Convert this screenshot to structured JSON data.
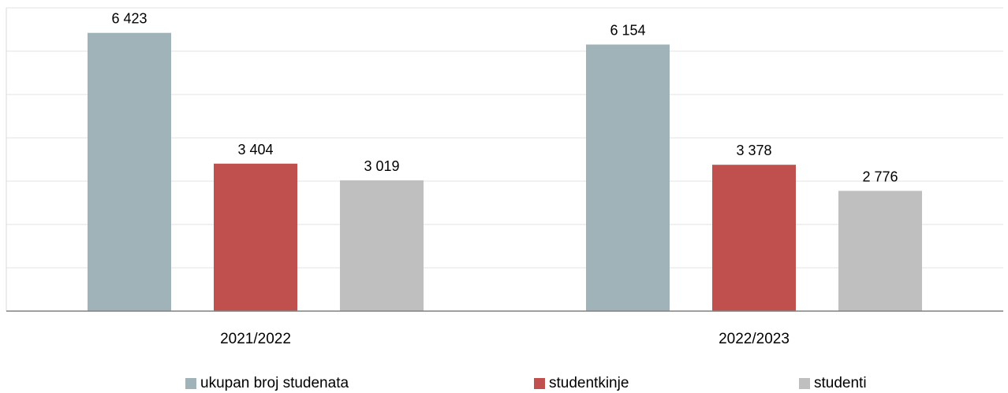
{
  "chart_data": {
    "type": "bar",
    "categories": [
      "2021/2022",
      "2022/2023"
    ],
    "series": [
      {
        "name": "ukupan broj studenata",
        "values": [
          6423,
          6154
        ],
        "labels": [
          "6 423",
          "6 154"
        ],
        "color": "#9fb3b9"
      },
      {
        "name": "studentkinje",
        "values": [
          3404,
          3378
        ],
        "labels": [
          "3 404",
          "3 378"
        ],
        "color": "#c0504d"
      },
      {
        "name": "studenti",
        "values": [
          3019,
          2776
        ],
        "labels": [
          "3 019",
          "2 776"
        ],
        "color": "#bfbfbf"
      }
    ],
    "ylim": [
      0,
      7000
    ],
    "grid": true,
    "legend_position": "bottom"
  }
}
